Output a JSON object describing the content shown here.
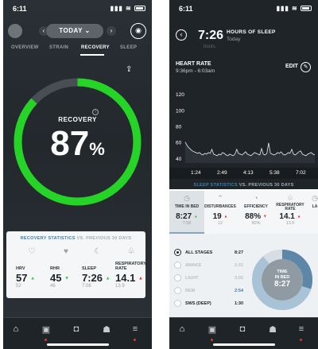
{
  "left": {
    "status_time": "6:11",
    "status_icons": "▮▮▮ ≋",
    "nav": {
      "prev": "‹",
      "date": "TODAY ⌄",
      "next": "›"
    },
    "tabs": [
      "OVERVIEW",
      "STRAIN",
      "RECOVERY",
      "SLEEP"
    ],
    "recovery_label": "RECOVERY",
    "recovery_value": "87",
    "recovery_unit": "%",
    "recovery_fraction": 0.87,
    "colors": {
      "recovery": "#26d428",
      "track": "#474f55"
    },
    "card_title_a": "RECOVERY STATISTICS",
    "card_title_b": "VS. PREVIOUS 30 DAYS",
    "stats": [
      {
        "label": "HRV",
        "value": "57",
        "trend": "▲",
        "trend_dir": "up",
        "base": "52",
        "icon": "heart-icon"
      },
      {
        "label": "RHR",
        "value": "45",
        "trend": "▼",
        "trend_dir": "up",
        "base": "46",
        "icon": "heartbeat-icon"
      },
      {
        "label": "SLEEP",
        "value": "7:26",
        "trend": "▲",
        "trend_dir": "up",
        "base": "7:08",
        "icon": "moon-icon"
      },
      {
        "label": "RESPIRATORY RATE",
        "value": "14.1",
        "trend": "▲",
        "trend_dir": "down",
        "base": "13.9",
        "icon": "lungs-icon"
      }
    ]
  },
  "right": {
    "status_time": "6:11",
    "sleep_value": "7:26",
    "sleep_label": "HOURS OF SLEEP",
    "sleep_sub": "Today",
    "cutoff_text": "bouts.",
    "hr_title": "HEART RATE",
    "hr_range": "9:36pm - 6:03am",
    "edit_label": "EDIT",
    "chart_data": {
      "type": "line",
      "title": "HEART RATE",
      "y_ticks": [
        "120",
        "100",
        "80",
        "60",
        "40"
      ],
      "ylim": [
        35,
        130
      ],
      "x_ticks": [
        "1:24",
        "2:49",
        "4:13",
        "5:38",
        "7:02"
      ],
      "series": [
        {
          "values": [
            61,
            57,
            54,
            52,
            50,
            49,
            48,
            47,
            48,
            46,
            45,
            47,
            46,
            48,
            47,
            52,
            46,
            45,
            44,
            46,
            45,
            48,
            47,
            45,
            44,
            46,
            45,
            44,
            46,
            52,
            47,
            46,
            45,
            47,
            49,
            46,
            45,
            44,
            46,
            48,
            47,
            46,
            45,
            53,
            46,
            45,
            47,
            60,
            47,
            46,
            45,
            46,
            48,
            47,
            49,
            46,
            45,
            46,
            48,
            47,
            52,
            46,
            45,
            47,
            49,
            50,
            46,
            45,
            44,
            46,
            47,
            48,
            46,
            45
          ]
        }
      ]
    },
    "strip_title_a": "SLEEP STATISTICS",
    "strip_title_b": "VS. PREVIOUS 30 DAYS",
    "strip": [
      {
        "label": "TIME IN BED",
        "value": "8:27",
        "trend": "▲",
        "trend_dir": "up",
        "base": "7:58",
        "icon": "bed-icon"
      },
      {
        "label": "DISTURBANCES",
        "value": "19",
        "trend": "▲",
        "trend_dir": "down",
        "base": "12",
        "icon": "alert-icon"
      },
      {
        "label": "EFFICIENCY",
        "value": "88%",
        "trend": "▼",
        "trend_dir": "down",
        "base": "90%",
        "icon": "gauge-icon"
      },
      {
        "label": "RESPIRATORY RATE",
        "value": "14.1",
        "trend": "▲",
        "trend_dir": "down",
        "base": "13.9",
        "icon": "lungs-icon"
      },
      {
        "label": "LA",
        "value": "",
        "trend": "",
        "trend_dir": "",
        "base": "",
        "icon": "clock-icon"
      }
    ],
    "stages": [
      {
        "name": "ALL STAGES",
        "time": "8:27",
        "selected": true
      },
      {
        "name": "AWAKE",
        "time": "1:01",
        "selected": false
      },
      {
        "name": "LIGHT",
        "time": "3:02",
        "selected": false
      },
      {
        "name": "REM",
        "time": "2:54",
        "selected": false
      },
      {
        "name": "SWS (DEEP)",
        "time": "1:30",
        "selected": false
      }
    ],
    "donut_label_a": "TIME",
    "donut_label_b": "IN BED",
    "donut_value": "8:27"
  }
}
